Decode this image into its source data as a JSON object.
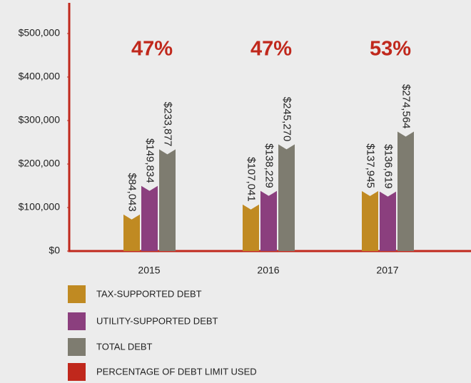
{
  "chart_data": {
    "type": "bar",
    "categories": [
      "2015",
      "2016",
      "2017"
    ],
    "series": [
      {
        "name": "TAX-SUPPORTED DEBT",
        "color": "#c08a22",
        "values": [
          84043,
          107041,
          137945
        ],
        "value_labels": [
          "$84,043",
          "$107,041",
          "$137,945"
        ]
      },
      {
        "name": "UTILITY-SUPPORTED DEBT",
        "color": "#8b3f7e",
        "values": [
          149834,
          138229,
          136619
        ],
        "value_labels": [
          "$149,834",
          "$138,229",
          "$136,619"
        ]
      },
      {
        "name": "TOTAL DEBT",
        "color": "#7e7c70",
        "values": [
          233877,
          245270,
          274564
        ],
        "value_labels": [
          "$233,877",
          "$245,270",
          "$274,564"
        ]
      }
    ],
    "percentages": {
      "name": "PERCENTAGE OF DEBT LIMIT USED",
      "color": "#c0281c",
      "values": [
        47,
        47,
        53
      ],
      "value_labels": [
        "47%",
        "47%",
        "53%"
      ]
    },
    "ylim": [
      0,
      500000
    ],
    "yticks": [
      {
        "value": 0,
        "label": "$0"
      },
      {
        "value": 100000,
        "label": "$100,000"
      },
      {
        "value": 200000,
        "label": "$200,000"
      },
      {
        "value": 300000,
        "label": "$300,000"
      },
      {
        "value": 400000,
        "label": "$400,000"
      },
      {
        "value": 500000,
        "label": "$500,000"
      }
    ],
    "axis_color": "#c0281c"
  }
}
